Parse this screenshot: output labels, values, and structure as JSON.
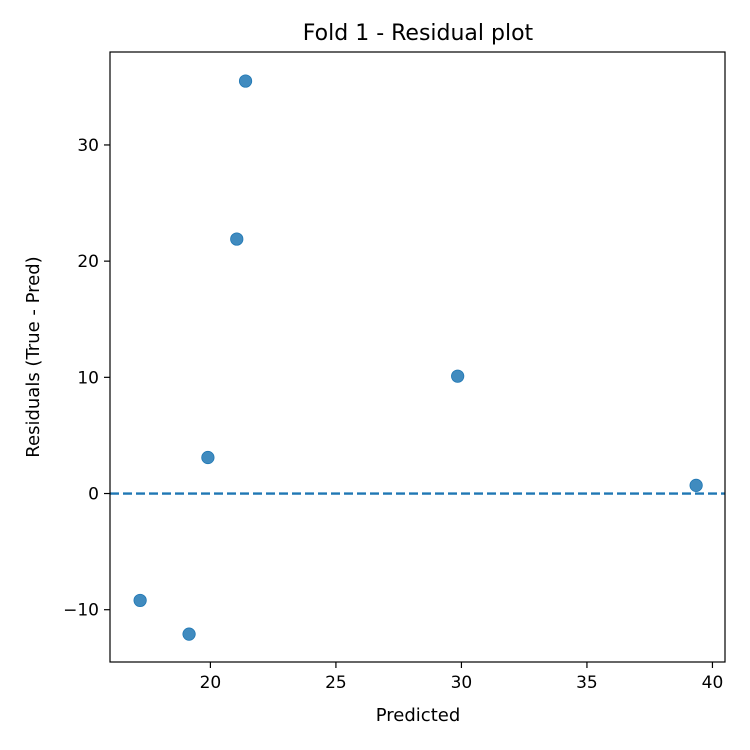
{
  "chart_data": {
    "type": "scatter",
    "title": "Fold 1 - Residual plot",
    "xlabel": "Predicted",
    "ylabel": "Residuals (True - Pred)",
    "xlim": [
      16.0,
      40.5
    ],
    "ylim": [
      -14.5,
      38.0
    ],
    "xticks": [
      20,
      25,
      30,
      35,
      40
    ],
    "yticks": [
      -10,
      0,
      10,
      20,
      30
    ],
    "xtick_labels": [
      "20",
      "25",
      "30",
      "35",
      "40"
    ],
    "ytick_labels": [
      "−10",
      "0",
      "10",
      "20",
      "30"
    ],
    "grid": false,
    "points": [
      {
        "x": 21.4,
        "y": 35.5
      },
      {
        "x": 21.05,
        "y": 21.9
      },
      {
        "x": 29.85,
        "y": 10.1
      },
      {
        "x": 19.9,
        "y": 3.1
      },
      {
        "x": 39.35,
        "y": 0.7
      },
      {
        "x": 17.2,
        "y": -9.2
      },
      {
        "x": 19.15,
        "y": -12.1
      }
    ],
    "reference_line": {
      "y": 0,
      "style": "dashed"
    },
    "colors": {
      "points": "#1f77b4",
      "reference_line": "#1f77b4"
    }
  }
}
